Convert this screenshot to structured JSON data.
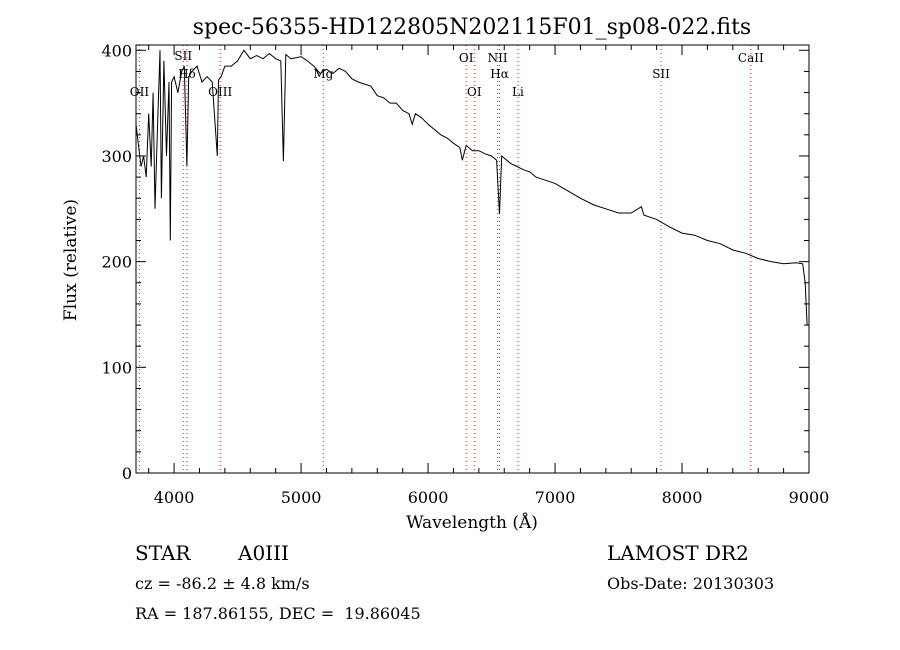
{
  "chart_data": {
    "type": "line",
    "title": "spec-56355-HD122805N202115F01_sp08-022.fits",
    "xlabel": "Wavelength (Å)",
    "ylabel": "Flux (relative)",
    "xlim": [
      3700,
      9000
    ],
    "ylim": [
      0,
      405
    ],
    "xticks": [
      4000,
      5000,
      6000,
      7000,
      8000,
      9000
    ],
    "yticks": [
      0,
      100,
      200,
      300,
      400
    ],
    "grid": false,
    "series": [
      {
        "x": [
          3700,
          3720,
          3740,
          3760,
          3780,
          3800,
          3820,
          3835,
          3850,
          3870,
          3889,
          3900,
          3920,
          3940,
          3960,
          3970,
          3980,
          4000,
          4030,
          4060,
          4080,
          4101,
          4115,
          4140,
          4180,
          4220,
          4260,
          4300,
          4340,
          4350,
          4370,
          4400,
          4450,
          4500,
          4550,
          4600,
          4650,
          4700,
          4750,
          4800,
          4840,
          4861,
          4880,
          4920,
          4960,
          5000,
          5050,
          5100,
          5150,
          5200,
          5250,
          5300,
          5350,
          5400,
          5450,
          5500,
          5550,
          5600,
          5650,
          5700,
          5750,
          5800,
          5850,
          5875,
          5900,
          5950,
          6000,
          6050,
          6100,
          6150,
          6200,
          6250,
          6270,
          6300,
          6350,
          6400,
          6450,
          6500,
          6540,
          6563,
          6580,
          6600,
          6650,
          6700,
          6750,
          6800,
          6850,
          6900,
          7000,
          7100,
          7200,
          7300,
          7400,
          7500,
          7600,
          7680,
          7700,
          7800,
          7900,
          8000,
          8100,
          8200,
          8300,
          8400,
          8500,
          8600,
          8700,
          8800,
          8900,
          8950,
          8970,
          8985,
          9000
        ],
        "values": [
          330,
          310,
          290,
          300,
          280,
          340,
          290,
          360,
          250,
          330,
          400,
          260,
          390,
          300,
          370,
          220,
          370,
          375,
          360,
          380,
          385,
          290,
          375,
          380,
          385,
          370,
          375,
          370,
          300,
          372,
          375,
          385,
          385,
          390,
          400,
          392,
          395,
          392,
          397,
          392,
          390,
          295,
          396,
          392,
          393,
          394,
          390,
          385,
          378,
          382,
          378,
          383,
          380,
          373,
          370,
          368,
          366,
          357,
          355,
          350,
          350,
          343,
          340,
          330,
          340,
          336,
          330,
          325,
          320,
          317,
          312,
          308,
          296,
          310,
          305,
          305,
          302,
          300,
          296,
          245,
          300,
          298,
          293,
          290,
          287,
          285,
          280,
          278,
          274,
          267,
          260,
          254,
          250,
          246,
          246,
          252,
          244,
          240,
          233,
          227,
          225,
          220,
          217,
          211,
          208,
          203,
          200,
          198,
          199,
          198,
          180,
          140,
          140
        ]
      }
    ],
    "lines": [
      {
        "name": "OII",
        "x": 3727
      },
      {
        "name": "Hδ",
        "x": 4101
      },
      {
        "name": "SII",
        "x": 4072
      },
      {
        "name": "OIII",
        "x": 4363
      },
      {
        "name": "Mg",
        "x": 5175
      },
      {
        "name": "OI",
        "x": 6300
      },
      {
        "name": "OI",
        "x": 6364
      },
      {
        "name": "NII",
        "x": 6548
      },
      {
        "name": "Hα",
        "x": 6563
      },
      {
        "name": "Li",
        "x": 6708
      },
      {
        "name": "SII",
        "x": 7835
      },
      {
        "name": "CaII",
        "x": 8542
      }
    ]
  },
  "info": {
    "object_class": "STAR",
    "subclass": "A0III",
    "survey": "LAMOST DR2",
    "redshift": "cz = -86.2 ± 4.8 km/s",
    "obs_date": "Obs-Date: 20130303",
    "coords": "RA = 187.86155, DEC =  19.86045"
  }
}
